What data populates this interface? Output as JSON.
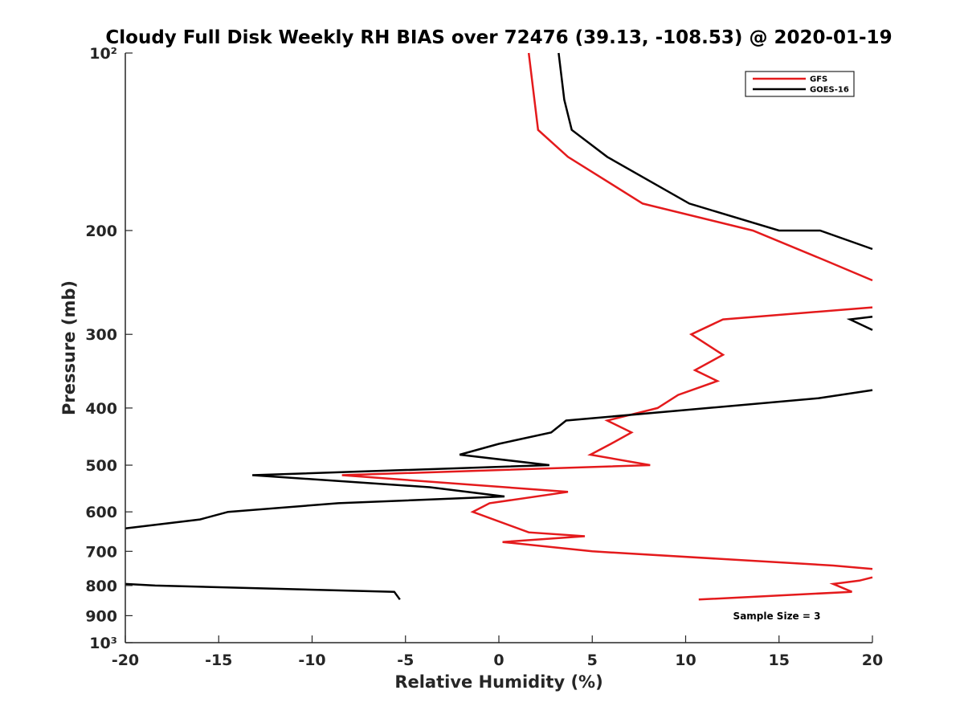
{
  "chart_data": {
    "type": "line",
    "title": "Cloudy Full Disk Weekly RH BIAS over 72476 (39.13, -108.53) @ 2020-01-19",
    "xlabel": "Relative Humidity (%)",
    "ylabel": "Pressure (mb)",
    "xlim": [
      -20,
      20
    ],
    "ylim": [
      100,
      1000
    ],
    "yscale": "log",
    "y_reversed": true,
    "grid": false,
    "legend_position": "top-right",
    "x_ticks": [
      -20,
      -15,
      -10,
      -5,
      0,
      5,
      10,
      15,
      20
    ],
    "x_tick_labels": [
      "-20",
      "-15",
      "-10",
      "-5",
      "0",
      "5",
      "10",
      "15",
      "20"
    ],
    "y_ticks": [
      100,
      200,
      300,
      400,
      500,
      600,
      700,
      800,
      900,
      1000
    ],
    "y_tick_labels": [
      "10²",
      "200",
      "300",
      "400",
      "500",
      "600",
      "700",
      "800",
      "900",
      "10³"
    ],
    "annotation": "Sample Size = 3",
    "series": [
      {
        "name": "GFS",
        "color": "#e41a1c",
        "segments": [
          [
            [
              1.6,
              100
            ],
            [
              2.1,
              135
            ],
            [
              3.7,
              150
            ],
            [
              7.7,
              180
            ],
            [
              13.6,
              200
            ],
            [
              17.5,
              225
            ],
            [
              20,
              243
            ]
          ],
          [
            [
              20,
              270
            ],
            [
              12,
              283
            ],
            [
              10.3,
              300
            ],
            [
              12,
              325
            ],
            [
              10.5,
              345
            ],
            [
              11.7,
              360
            ],
            [
              9.6,
              380
            ],
            [
              8.5,
              400
            ],
            [
              5.8,
              420
            ],
            [
              7.1,
              440
            ],
            [
              6,
              460
            ],
            [
              4.9,
              480
            ],
            [
              8.1,
              500
            ],
            [
              -8.4,
              520
            ],
            [
              3.7,
              555
            ],
            [
              -0.5,
              580
            ],
            [
              -1.4,
              600
            ],
            [
              1.6,
              650
            ],
            [
              4.6,
              660
            ],
            [
              0.2,
              675
            ],
            [
              5,
              700
            ],
            [
              17.9,
              740
            ],
            [
              20,
              750
            ]
          ],
          [
            [
              20,
              775
            ],
            [
              19.3,
              785
            ],
            [
              17.9,
              795
            ],
            [
              18.9,
              820
            ],
            [
              10.7,
              845
            ]
          ]
        ]
      },
      {
        "name": "GOES-16",
        "color": "#000000",
        "segments": [
          [
            [
              3.2,
              100
            ],
            [
              3.5,
              120
            ],
            [
              3.9,
              135
            ],
            [
              5.8,
              150
            ],
            [
              10.2,
              180
            ],
            [
              15,
              200
            ],
            [
              17.2,
              200
            ],
            [
              20,
              215
            ]
          ],
          [
            [
              20,
              280
            ],
            [
              18.8,
              283
            ],
            [
              20,
              295
            ]
          ],
          [
            [
              20,
              373
            ],
            [
              17.1,
              385
            ],
            [
              11.2,
              400
            ],
            [
              3.6,
              420
            ],
            [
              2.8,
              440
            ],
            [
              0,
              460
            ],
            [
              -2.1,
              480
            ],
            [
              2.7,
              500
            ],
            [
              -13.2,
              520
            ],
            [
              -3.7,
              545
            ],
            [
              0.3,
              565
            ],
            [
              -8.6,
              580
            ],
            [
              -14.5,
              600
            ],
            [
              -16,
              618
            ],
            [
              -20,
              640
            ]
          ],
          [
            [
              -20,
              795
            ],
            [
              -18.4,
              800
            ],
            [
              -5.6,
              820
            ],
            [
              -5.3,
              845
            ]
          ]
        ]
      }
    ]
  }
}
